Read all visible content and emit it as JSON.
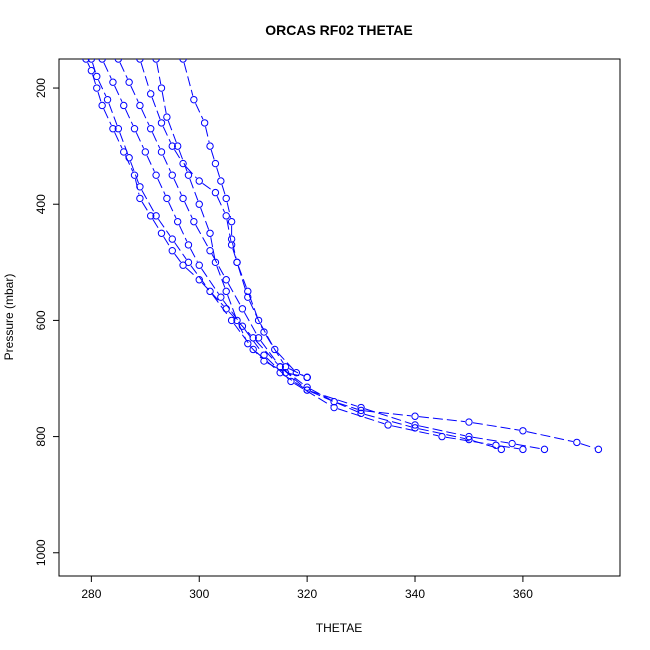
{
  "chart_data": {
    "type": "line",
    "title": "ORCAS RF02 THETAE",
    "xlabel": "THETAE",
    "ylabel": "Pressure (mbar)",
    "xlim": [
      274,
      378
    ],
    "ylim": [
      1040,
      150
    ],
    "y_reversed": true,
    "x_ticks": [
      280,
      300,
      320,
      340,
      360
    ],
    "y_ticks": [
      200,
      400,
      600,
      800,
      1000
    ],
    "grid": false,
    "marker": "open-circle",
    "line_style": "dashed",
    "color": "#0000ff",
    "series": [
      {
        "x": [
          279,
          280,
          281,
          282,
          284,
          286,
          288,
          289,
          291,
          293,
          295,
          297,
          300,
          305,
          310,
          315,
          320,
          325,
          330,
          340,
          350,
          360,
          370,
          374
        ],
        "y": [
          150,
          170,
          200,
          230,
          270,
          310,
          350,
          390,
          420,
          450,
          480,
          505,
          530,
          580,
          630,
          680,
          715,
          740,
          755,
          765,
          775,
          790,
          810,
          822
        ]
      },
      {
        "x": [
          280,
          281,
          283,
          285,
          287,
          289,
          292,
          295,
          298,
          302,
          306,
          310,
          315,
          320,
          330,
          340,
          350,
          358,
          364
        ],
        "y": [
          150,
          180,
          220,
          270,
          320,
          370,
          420,
          460,
          500,
          550,
          600,
          650,
          690,
          720,
          750,
          780,
          800,
          812,
          822
        ]
      },
      {
        "x": [
          282,
          284,
          286,
          288,
          290,
          292,
          294,
          296,
          298,
          300,
          304,
          308,
          312,
          317,
          325,
          335,
          345,
          355,
          360
        ],
        "y": [
          150,
          190,
          230,
          270,
          310,
          350,
          390,
          430,
          470,
          505,
          560,
          610,
          660,
          705,
          750,
          780,
          800,
          815,
          822
        ]
      },
      {
        "x": [
          285,
          287,
          289,
          291,
          293,
          295,
          297,
          299,
          302,
          305,
          308,
          311,
          315,
          320,
          330,
          340,
          350,
          356
        ],
        "y": [
          150,
          190,
          230,
          270,
          310,
          350,
          390,
          430,
          480,
          530,
          580,
          630,
          680,
          720,
          760,
          785,
          805,
          822
        ]
      },
      {
        "x": [
          292,
          293,
          294,
          296,
          298,
          300,
          302,
          303,
          305,
          307,
          309,
          312,
          316,
          320
        ],
        "y": [
          150,
          200,
          250,
          300,
          350,
          400,
          450,
          500,
          550,
          600,
          640,
          670,
          690,
          698
        ]
      },
      {
        "x": [
          289,
          291,
          293,
          295,
          297,
          300,
          303,
          305,
          306,
          307,
          309,
          312,
          316,
          320
        ],
        "y": [
          150,
          210,
          260,
          300,
          330,
          360,
          380,
          420,
          470,
          500,
          560,
          620,
          680,
          698
        ]
      },
      {
        "x": [
          297,
          299,
          301,
          302,
          303,
          304,
          305,
          306,
          306,
          307,
          309,
          311,
          314,
          318,
          320
        ],
        "y": [
          150,
          220,
          260,
          300,
          330,
          360,
          390,
          430,
          460,
          500,
          550,
          600,
          650,
          690,
          698
        ]
      }
    ]
  }
}
